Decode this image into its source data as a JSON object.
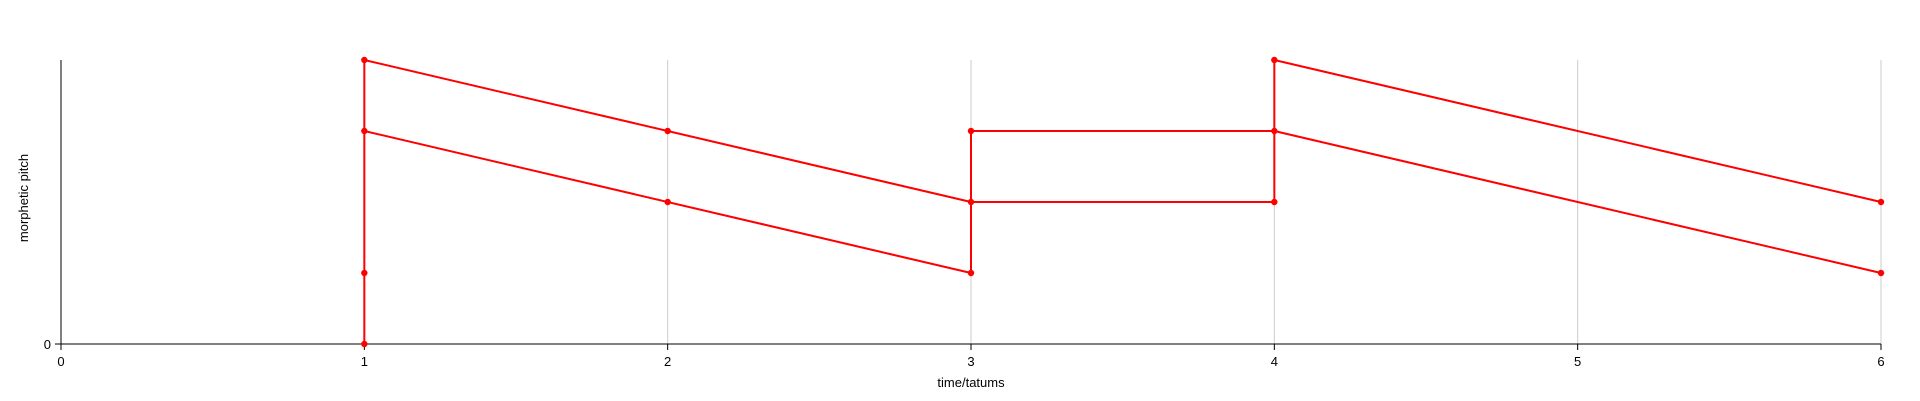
{
  "chart_data": {
    "type": "line",
    "title": "",
    "xlabel": "time/tatums",
    "ylabel": "morphetic pitch",
    "xlim": [
      0,
      6
    ],
    "ylim": [
      0,
      4
    ],
    "x_ticks": [
      "0",
      "1",
      "2",
      "3",
      "4",
      "5",
      "6"
    ],
    "y_ticks": [
      "0"
    ],
    "grid": "vertical gridlines at x = 2, 3, 4, 5, 6",
    "color": "#ff0000",
    "segments": [
      {
        "from": [
          1,
          4
        ],
        "to": [
          3,
          2
        ]
      },
      {
        "from": [
          1,
          3
        ],
        "to": [
          3,
          1
        ]
      },
      {
        "from": [
          1,
          0
        ],
        "to": [
          1,
          4
        ]
      },
      {
        "from": [
          3,
          1
        ],
        "to": [
          3,
          3
        ]
      },
      {
        "from": [
          3,
          3
        ],
        "to": [
          4,
          3
        ]
      },
      {
        "from": [
          3,
          2
        ],
        "to": [
          4,
          2
        ]
      },
      {
        "from": [
          4,
          2
        ],
        "to": [
          4,
          4
        ]
      },
      {
        "from": [
          4,
          4
        ],
        "to": [
          6,
          2
        ]
      },
      {
        "from": [
          4,
          3
        ],
        "to": [
          6,
          1
        ]
      }
    ],
    "points": [
      [
        1,
        0
      ],
      [
        1,
        1
      ],
      [
        1,
        3
      ],
      [
        1,
        4
      ],
      [
        2,
        2
      ],
      [
        2,
        3
      ],
      [
        3,
        1
      ],
      [
        3,
        2
      ],
      [
        3,
        3
      ],
      [
        4,
        2
      ],
      [
        4,
        3
      ],
      [
        4,
        4
      ],
      [
        6,
        1
      ],
      [
        6,
        2
      ]
    ]
  }
}
